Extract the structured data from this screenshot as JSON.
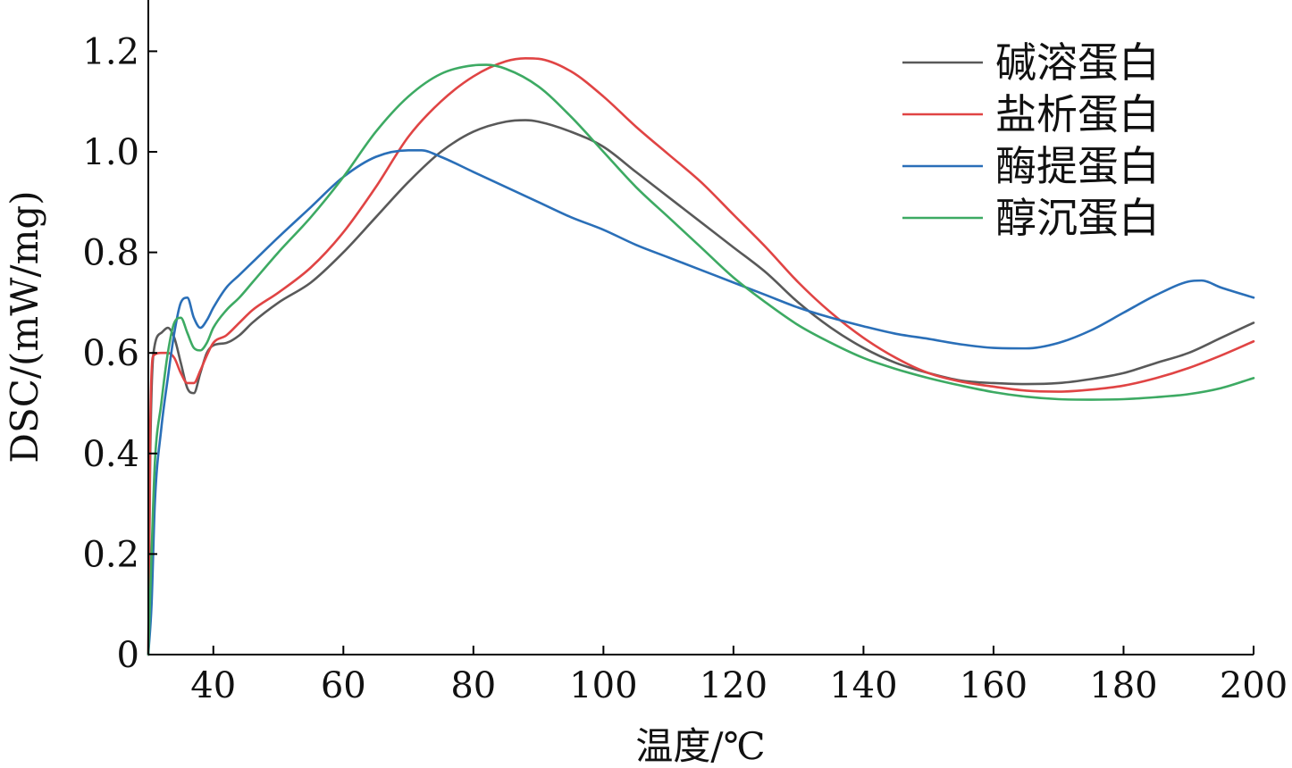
{
  "chart_data": {
    "type": "line",
    "title": "",
    "xlabel": "温度/℃",
    "ylabel": "DSC/(mW/mg)",
    "xlim": [
      30,
      200
    ],
    "ylim": [
      0,
      1.3
    ],
    "x_ticks": [
      40,
      60,
      80,
      100,
      120,
      140,
      160,
      180,
      200
    ],
    "x_tick_labels": [
      "40",
      "60",
      "80",
      "100",
      "120",
      "140",
      "160",
      "180",
      "200"
    ],
    "y_ticks": [
      0,
      0.2,
      0.4,
      0.6,
      0.8,
      1.0,
      1.2
    ],
    "y_tick_labels": [
      "0",
      "0.2",
      "0.4",
      "0.6",
      "0.8",
      "1.0",
      "1.2"
    ],
    "grid": false,
    "legend_position": "top-right",
    "series": [
      {
        "name": "碱溶蛋白",
        "color": "#595959",
        "points": [
          [
            30,
            0
          ],
          [
            30.3,
            0.4
          ],
          [
            30.8,
            0.6
          ],
          [
            32,
            0.64
          ],
          [
            33,
            0.65
          ],
          [
            34,
            0.63
          ],
          [
            35,
            0.58
          ],
          [
            36,
            0.53
          ],
          [
            37,
            0.52
          ],
          [
            38,
            0.56
          ],
          [
            39,
            0.6
          ],
          [
            40,
            0.615
          ],
          [
            42,
            0.62
          ],
          [
            44,
            0.635
          ],
          [
            46,
            0.66
          ],
          [
            50,
            0.7
          ],
          [
            55,
            0.74
          ],
          [
            60,
            0.8
          ],
          [
            65,
            0.87
          ],
          [
            70,
            0.94
          ],
          [
            75,
            1.0
          ],
          [
            80,
            1.04
          ],
          [
            85,
            1.06
          ],
          [
            88,
            1.063
          ],
          [
            90,
            1.06
          ],
          [
            95,
            1.04
          ],
          [
            100,
            1.01
          ],
          [
            105,
            0.96
          ],
          [
            110,
            0.91
          ],
          [
            115,
            0.86
          ],
          [
            120,
            0.81
          ],
          [
            125,
            0.76
          ],
          [
            130,
            0.7
          ],
          [
            135,
            0.65
          ],
          [
            140,
            0.61
          ],
          [
            145,
            0.58
          ],
          [
            150,
            0.56
          ],
          [
            155,
            0.545
          ],
          [
            160,
            0.54
          ],
          [
            165,
            0.538
          ],
          [
            170,
            0.54
          ],
          [
            175,
            0.548
          ],
          [
            180,
            0.56
          ],
          [
            185,
            0.58
          ],
          [
            190,
            0.6
          ],
          [
            195,
            0.63
          ],
          [
            200,
            0.66
          ]
        ]
      },
      {
        "name": "盐析蛋白",
        "color": "#e04444",
        "points": [
          [
            30,
            0
          ],
          [
            30.3,
            0.45
          ],
          [
            30.8,
            0.595
          ],
          [
            32,
            0.6
          ],
          [
            33,
            0.6
          ],
          [
            34,
            0.59
          ],
          [
            35,
            0.56
          ],
          [
            36,
            0.54
          ],
          [
            37,
            0.54
          ],
          [
            38,
            0.565
          ],
          [
            39,
            0.595
          ],
          [
            40,
            0.62
          ],
          [
            42,
            0.635
          ],
          [
            44,
            0.66
          ],
          [
            46,
            0.685
          ],
          [
            50,
            0.72
          ],
          [
            55,
            0.77
          ],
          [
            60,
            0.84
          ],
          [
            65,
            0.93
          ],
          [
            70,
            1.03
          ],
          [
            75,
            1.1
          ],
          [
            80,
            1.15
          ],
          [
            85,
            1.18
          ],
          [
            88,
            1.186
          ],
          [
            90,
            1.185
          ],
          [
            95,
            1.16
          ],
          [
            100,
            1.11
          ],
          [
            105,
            1.05
          ],
          [
            110,
            0.995
          ],
          [
            115,
            0.94
          ],
          [
            120,
            0.875
          ],
          [
            125,
            0.81
          ],
          [
            130,
            0.74
          ],
          [
            135,
            0.68
          ],
          [
            140,
            0.63
          ],
          [
            145,
            0.59
          ],
          [
            150,
            0.56
          ],
          [
            155,
            0.543
          ],
          [
            160,
            0.533
          ],
          [
            165,
            0.525
          ],
          [
            170,
            0.523
          ],
          [
            175,
            0.527
          ],
          [
            180,
            0.535
          ],
          [
            185,
            0.55
          ],
          [
            190,
            0.57
          ],
          [
            195,
            0.595
          ],
          [
            200,
            0.623
          ]
        ]
      },
      {
        "name": "酶提蛋白",
        "color": "#2a6fb8",
        "points": [
          [
            30,
            0
          ],
          [
            30.5,
            0.1
          ],
          [
            31,
            0.3
          ],
          [
            32,
            0.45
          ],
          [
            33,
            0.55
          ],
          [
            34,
            0.64
          ],
          [
            35,
            0.7
          ],
          [
            36,
            0.71
          ],
          [
            37,
            0.67
          ],
          [
            38,
            0.65
          ],
          [
            39,
            0.665
          ],
          [
            40,
            0.69
          ],
          [
            42,
            0.73
          ],
          [
            44,
            0.755
          ],
          [
            46,
            0.78
          ],
          [
            50,
            0.83
          ],
          [
            55,
            0.89
          ],
          [
            60,
            0.95
          ],
          [
            65,
            0.99
          ],
          [
            70,
            1.003
          ],
          [
            72,
            1.003
          ],
          [
            75,
            0.99
          ],
          [
            80,
            0.96
          ],
          [
            85,
            0.93
          ],
          [
            90,
            0.9
          ],
          [
            95,
            0.87
          ],
          [
            100,
            0.845
          ],
          [
            105,
            0.815
          ],
          [
            110,
            0.79
          ],
          [
            115,
            0.765
          ],
          [
            120,
            0.74
          ],
          [
            125,
            0.715
          ],
          [
            130,
            0.69
          ],
          [
            135,
            0.67
          ],
          [
            140,
            0.653
          ],
          [
            145,
            0.638
          ],
          [
            150,
            0.628
          ],
          [
            155,
            0.617
          ],
          [
            160,
            0.61
          ],
          [
            165,
            0.609
          ],
          [
            170,
            0.62
          ],
          [
            175,
            0.645
          ],
          [
            180,
            0.68
          ],
          [
            185,
            0.715
          ],
          [
            190,
            0.742
          ],
          [
            192,
            0.744
          ],
          [
            195,
            0.73
          ],
          [
            200,
            0.71
          ]
        ]
      },
      {
        "name": "醇沉蛋白",
        "color": "#3daa63",
        "points": [
          [
            30,
            0
          ],
          [
            30.5,
            0.2
          ],
          [
            31,
            0.38
          ],
          [
            32,
            0.5
          ],
          [
            33,
            0.6
          ],
          [
            34,
            0.66
          ],
          [
            35,
            0.67
          ],
          [
            36,
            0.64
          ],
          [
            37,
            0.61
          ],
          [
            38,
            0.605
          ],
          [
            39,
            0.62
          ],
          [
            40,
            0.65
          ],
          [
            42,
            0.685
          ],
          [
            44,
            0.71
          ],
          [
            46,
            0.74
          ],
          [
            50,
            0.8
          ],
          [
            55,
            0.87
          ],
          [
            60,
            0.95
          ],
          [
            65,
            1.04
          ],
          [
            70,
            1.11
          ],
          [
            75,
            1.155
          ],
          [
            80,
            1.172
          ],
          [
            82,
            1.173
          ],
          [
            85,
            1.165
          ],
          [
            90,
            1.13
          ],
          [
            95,
            1.07
          ],
          [
            100,
            1.0
          ],
          [
            105,
            0.93
          ],
          [
            110,
            0.87
          ],
          [
            115,
            0.81
          ],
          [
            120,
            0.75
          ],
          [
            125,
            0.7
          ],
          [
            130,
            0.655
          ],
          [
            135,
            0.62
          ],
          [
            140,
            0.59
          ],
          [
            145,
            0.568
          ],
          [
            150,
            0.55
          ],
          [
            155,
            0.535
          ],
          [
            160,
            0.522
          ],
          [
            165,
            0.513
          ],
          [
            170,
            0.508
          ],
          [
            175,
            0.507
          ],
          [
            180,
            0.508
          ],
          [
            185,
            0.512
          ],
          [
            190,
            0.518
          ],
          [
            195,
            0.53
          ],
          [
            200,
            0.55
          ]
        ]
      }
    ]
  }
}
